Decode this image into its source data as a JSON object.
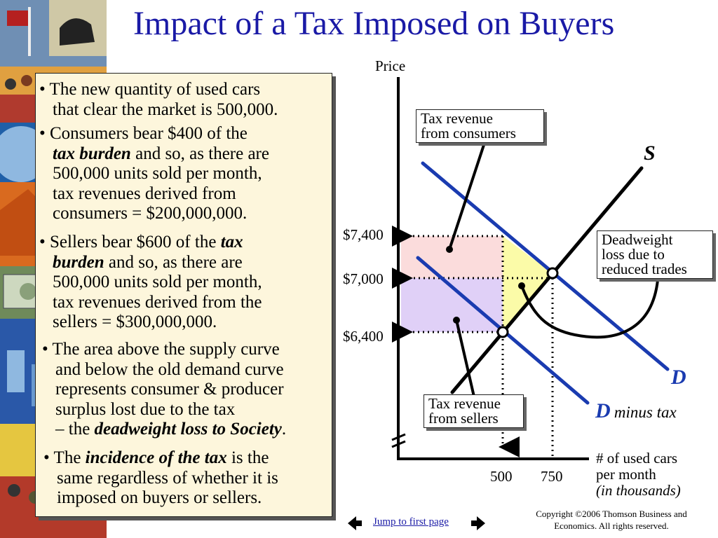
{
  "title": "Impact of a Tax Imposed on Buyers",
  "bullets": {
    "b1": [
      "• The new quantity of used cars",
      "that clear the market is 500,000."
    ],
    "b2": {
      "l1": "• Consumers bear $400 of the",
      "l2_em": "tax burden",
      "l2_rest": " and so, as there are",
      "l3": "500,000 units sold per month,",
      "l4": "tax revenues derived from",
      "l5": "consumers = $200,000,000."
    },
    "b3": {
      "l1_pre": "• Sellers bear $600 of the ",
      "l1_em": "tax",
      "l2_em": "burden",
      "l2_rest": " and so, as there are",
      "l3": "500,000 units sold per month,",
      "l4": "tax revenues derived from the",
      "l5": "sellers = $300,000,000."
    },
    "b4": {
      "l1": "• The area above the supply curve",
      "l2": "and below the old demand curve",
      "l3": "represents consumer & producer",
      "l4": "surplus lost due to the tax",
      "l5_pre": "– the ",
      "l5_em": "deadweight loss to Society",
      "l5_post": "."
    },
    "b5": {
      "l1_pre": "• The ",
      "l1_em": "incidence of the tax",
      "l1_post": " is the",
      "l2": "same regardless of whether it is",
      "l3": "imposed on buyers or sellers."
    }
  },
  "diagram": {
    "y_axis_label": "Price",
    "x_axis_label": [
      "# of used cars",
      "per month"
    ],
    "x_axis_unit": "(in thousands)",
    "price_ticks": [
      "$7,400",
      "$7,000",
      "$6,400"
    ],
    "quantity_ticks": [
      "500",
      "750"
    ],
    "supply_label": "S",
    "demand_label": "D",
    "shifted_demand_label": "D",
    "shifted_demand_suffix": "minus tax",
    "callouts": {
      "consumers": [
        "Tax revenue",
        "from consumers"
      ],
      "sellers": [
        "Tax revenue",
        "from sellers"
      ],
      "deadweight": [
        "Deadweight",
        "loss due to",
        "reduced trades"
      ]
    },
    "colors": {
      "consumer_revenue_area": "#fbdcdc",
      "seller_revenue_area": "#e0d0f7",
      "deadweight_area": "#fbfba8",
      "demand_lines": "#1a3bb0",
      "supply_line": "#000000",
      "title": "#1a1aa6"
    },
    "equilibrium": {
      "before_tax": {
        "quantity": 750,
        "price": 7000
      },
      "after_tax": {
        "quantity": 500,
        "buyers_pay": 7400,
        "sellers_receive": 6400
      }
    }
  },
  "footer": {
    "jump_link": "Jump to first page",
    "copyright": [
      "Copyright ©2006  Thomson Business and",
      "Economics. All rights reserved."
    ]
  }
}
